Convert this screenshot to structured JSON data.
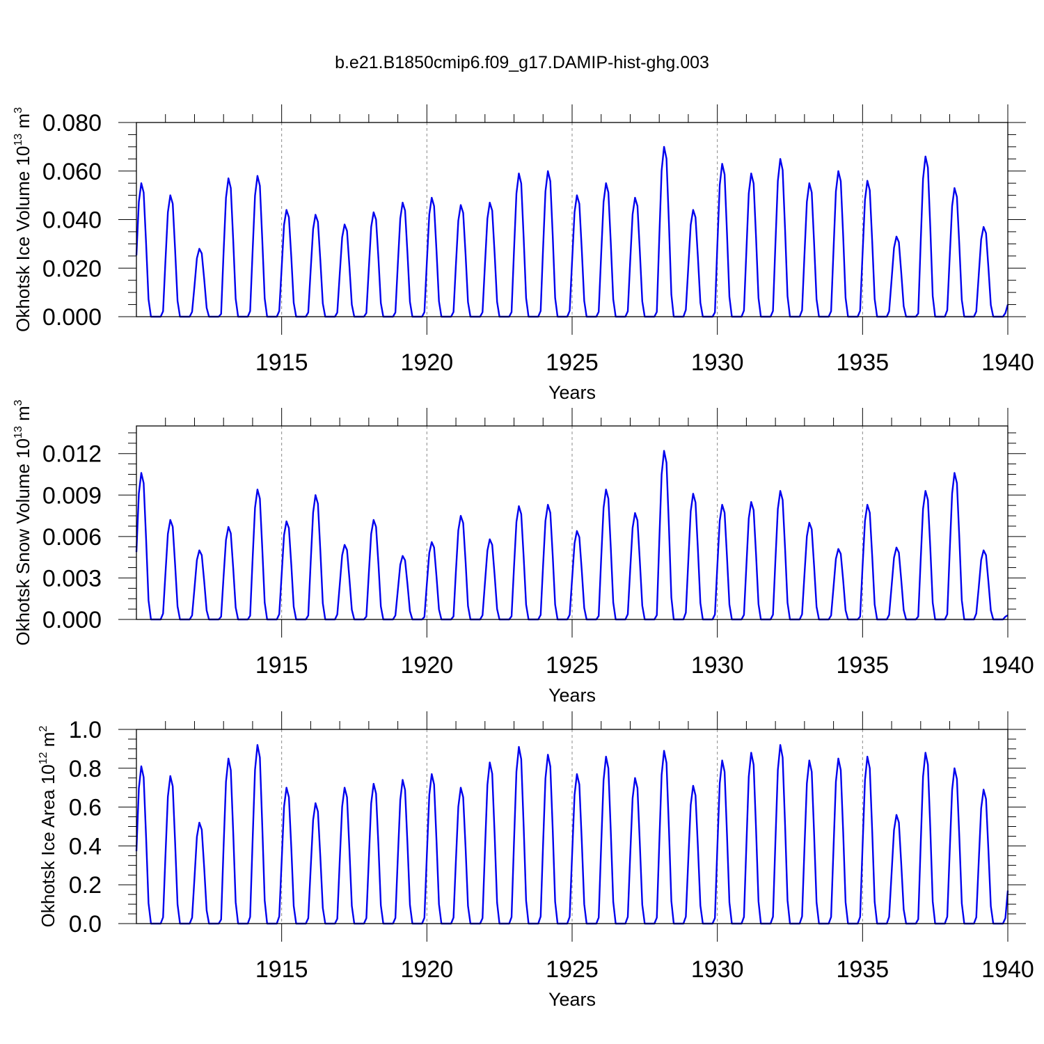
{
  "figure_title": "b.e21.B1850cmip6.f09_g17.DAMIP-hist-ghg.003",
  "colors": {
    "line": "#0000ee",
    "grid": "#888888"
  },
  "panels": [
    {
      "ylabel_main": "Okhotsk Ice Volume 10",
      "ylabel_exp": "13",
      "ylabel_unit": " m",
      "ylabel_unit_exp": "3"
    },
    {
      "ylabel_main": "Okhotsk Snow Volume 10",
      "ylabel_exp": "13",
      "ylabel_unit": " m",
      "ylabel_unit_exp": "3"
    },
    {
      "ylabel_main": "Okhotsk Ice Area 10",
      "ylabel_exp": "12",
      "ylabel_unit": " m",
      "ylabel_unit_exp": "2"
    }
  ],
  "chart_data": [
    {
      "type": "line",
      "xlabel": "Years",
      "ylabel": "Okhotsk Ice Volume 10^13 m^3",
      "xlim": [
        1910.0,
        1940.0
      ],
      "ylim": [
        0.0,
        0.08
      ],
      "x_ticks": [
        "1915",
        "1920",
        "1925",
        "1930",
        "1935",
        "1940"
      ],
      "y_ticks": [
        "0.000",
        "0.020",
        "0.040",
        "0.060",
        "0.080"
      ],
      "grid": "dashed vertical lines at 1915, 1920, 1925, 1930, 1935",
      "series": [
        {
          "x_start": 1910.0,
          "x_step": 0.08333,
          "annual_peaks": [
            0.055,
            0.05,
            0.028,
            0.057,
            0.058,
            0.044,
            0.042,
            0.038,
            0.043,
            0.047,
            0.049,
            0.046,
            0.047,
            0.059,
            0.06,
            0.05,
            0.055,
            0.049,
            0.07,
            0.044,
            0.063,
            0.059,
            0.065,
            0.055,
            0.06,
            0.056,
            0.033,
            0.066,
            0.053,
            0.037
          ],
          "end_value": 0.005
        }
      ]
    },
    {
      "type": "line",
      "xlabel": "Years",
      "ylabel": "Okhotsk Snow Volume 10^13 m^3",
      "xlim": [
        1910.0,
        1940.0
      ],
      "ylim": [
        0.0,
        0.014
      ],
      "x_ticks": [
        "1915",
        "1920",
        "1925",
        "1930",
        "1935",
        "1940"
      ],
      "y_ticks": [
        "0.000",
        "0.003",
        "0.006",
        "0.009",
        "0.012"
      ],
      "grid": "dashed vertical lines at 1915, 1920, 1925, 1930, 1935",
      "series": [
        {
          "x_start": 1910.0,
          "x_step": 0.08333,
          "annual_peaks": [
            0.0106,
            0.0072,
            0.005,
            0.0067,
            0.0094,
            0.0071,
            0.009,
            0.0054,
            0.0072,
            0.0046,
            0.0056,
            0.0075,
            0.0058,
            0.0082,
            0.0083,
            0.0064,
            0.0094,
            0.0077,
            0.0122,
            0.0091,
            0.0083,
            0.0085,
            0.0093,
            0.007,
            0.0051,
            0.0083,
            0.0052,
            0.0093,
            0.0106,
            0.005
          ],
          "end_value": 0.0003
        }
      ]
    },
    {
      "type": "line",
      "xlabel": "Years",
      "ylabel": "Okhotsk Ice Area 10^12 m^2",
      "xlim": [
        1910.0,
        1940.0
      ],
      "ylim": [
        0.0,
        1.0
      ],
      "x_ticks": [
        "1915",
        "1920",
        "1925",
        "1930",
        "1935",
        "1940"
      ],
      "y_ticks": [
        "0.0",
        "0.2",
        "0.4",
        "0.6",
        "0.8",
        "1.0"
      ],
      "grid": "dashed vertical lines at 1915, 1920, 1925, 1930, 1935",
      "series": [
        {
          "x_start": 1910.0,
          "x_step": 0.08333,
          "annual_peaks": [
            0.81,
            0.76,
            0.52,
            0.85,
            0.92,
            0.7,
            0.62,
            0.7,
            0.72,
            0.74,
            0.77,
            0.7,
            0.83,
            0.91,
            0.87,
            0.77,
            0.86,
            0.75,
            0.89,
            0.71,
            0.84,
            0.88,
            0.92,
            0.84,
            0.85,
            0.86,
            0.56,
            0.88,
            0.8,
            0.69
          ],
          "end_value": 0.17
        }
      ]
    }
  ]
}
